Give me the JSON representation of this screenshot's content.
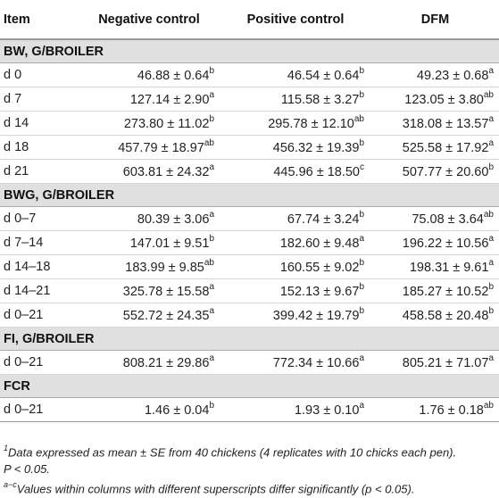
{
  "headers": [
    "Item",
    "Negative control",
    "Positive control",
    "DFM"
  ],
  "sections": [
    {
      "title": "BW, G/BROILER",
      "rows": [
        {
          "item": "d 0",
          "values": [
            {
              "v": "46.88 ± 0.64",
              "s": "b"
            },
            {
              "v": "46.54 ± 0.64",
              "s": "b"
            },
            {
              "v": "49.23 ± 0.68",
              "s": "a"
            }
          ]
        },
        {
          "item": "d 7",
          "values": [
            {
              "v": "127.14 ± 2.90",
              "s": "a"
            },
            {
              "v": "115.58 ± 3.27",
              "s": "b"
            },
            {
              "v": "123.05 ± 3.80",
              "s": "ab"
            }
          ]
        },
        {
          "item": "d 14",
          "values": [
            {
              "v": "273.80 ± 11.02",
              "s": "b"
            },
            {
              "v": "295.78 ± 12.10",
              "s": "ab"
            },
            {
              "v": "318.08 ± 13.57",
              "s": "a"
            }
          ]
        },
        {
          "item": "d 18",
          "values": [
            {
              "v": "457.79 ± 18.97",
              "s": "ab"
            },
            {
              "v": "456.32 ± 19.39",
              "s": "b"
            },
            {
              "v": "525.58 ± 17.92",
              "s": "a"
            }
          ]
        },
        {
          "item": "d 21",
          "values": [
            {
              "v": "603.81 ± 24.32",
              "s": "a"
            },
            {
              "v": "445.96 ± 18.50",
              "s": "c"
            },
            {
              "v": "507.77 ± 20.60",
              "s": "b"
            }
          ]
        }
      ]
    },
    {
      "title": "BWG, G/BROILER",
      "rows": [
        {
          "item": "d 0–7",
          "values": [
            {
              "v": "80.39 ± 3.06",
              "s": "a"
            },
            {
              "v": "67.74 ± 3.24",
              "s": "b"
            },
            {
              "v": "75.08 ± 3.64",
              "s": "ab"
            }
          ]
        },
        {
          "item": "d 7–14",
          "values": [
            {
              "v": "147.01 ± 9.51",
              "s": "b"
            },
            {
              "v": "182.60 ± 9.48",
              "s": "a"
            },
            {
              "v": "196.22 ± 10.56",
              "s": "a"
            }
          ]
        },
        {
          "item": "d 14–18",
          "values": [
            {
              "v": "183.99 ± 9.85",
              "s": "ab"
            },
            {
              "v": "160.55 ± 9.02",
              "s": "b"
            },
            {
              "v": "198.31 ± 9.61",
              "s": "a"
            }
          ]
        },
        {
          "item": "d 14–21",
          "values": [
            {
              "v": "325.78 ± 15.58",
              "s": "a"
            },
            {
              "v": "152.13 ± 9.67",
              "s": "b"
            },
            {
              "v": "185.27 ± 10.52",
              "s": "b"
            }
          ]
        },
        {
          "item": "d 0–21",
          "values": [
            {
              "v": "552.72 ± 24.35",
              "s": "a"
            },
            {
              "v": "399.42 ± 19.79",
              "s": "b"
            },
            {
              "v": "458.58 ± 20.48",
              "s": "b"
            }
          ]
        }
      ]
    },
    {
      "title": "FI, G/BROILER",
      "rows": [
        {
          "item": "d 0–21",
          "values": [
            {
              "v": "808.21 ± 29.86",
              "s": "a"
            },
            {
              "v": "772.34 ± 10.66",
              "s": "a"
            },
            {
              "v": "805.21 ± 71.07",
              "s": "a"
            }
          ]
        }
      ]
    },
    {
      "title": "FCR",
      "rows": [
        {
          "item": "d 0–21",
          "values": [
            {
              "v": "1.46 ± 0.04",
              "s": "b"
            },
            {
              "v": "1.93 ± 0.10",
              "s": "a"
            },
            {
              "v": "1.76 ± 0.18",
              "s": "ab"
            }
          ]
        }
      ]
    }
  ],
  "footnotes": [
    {
      "sup": "1",
      "text": "Data expressed as mean ± SE from 40 chickens (4 replicates with 10 chicks each pen)."
    },
    {
      "sup": "",
      "text": "P < 0.05."
    },
    {
      "sup": "a−c",
      "text": "Values within columns with different superscripts differ significantly (p < 0.05)."
    }
  ]
}
